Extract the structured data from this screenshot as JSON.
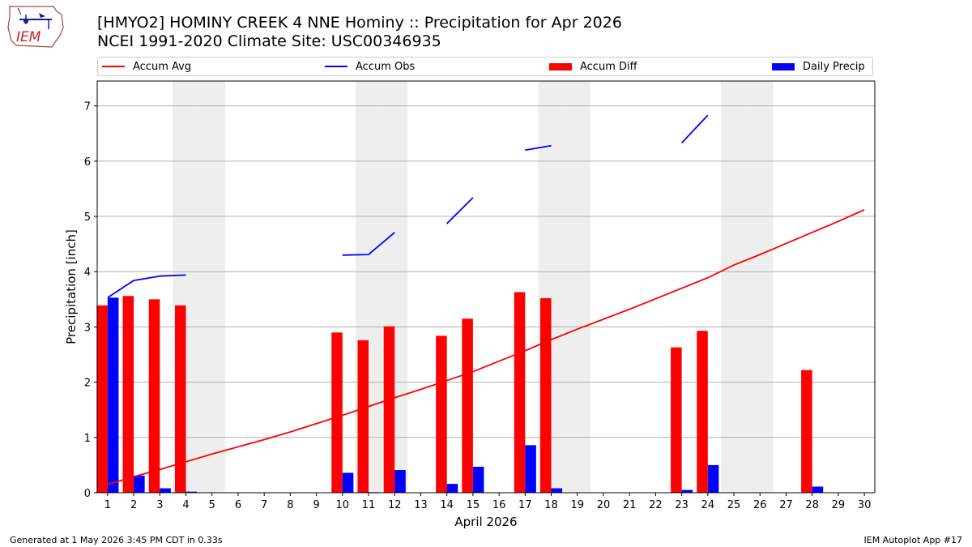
{
  "header": {
    "title_line1": "[HMYO2] HOMINY CREEK 4 NNE Hominy :: Precipitation for Apr 2026",
    "title_line2": "NCEI 1991-2020 Climate Site: USC00346935",
    "logo_text": "IEM"
  },
  "legend": {
    "items": [
      {
        "label": "Accum Avg",
        "color": "#ff0000",
        "kind": "line"
      },
      {
        "label": "Accum Obs",
        "color": "#0000ff",
        "kind": "line"
      },
      {
        "label": "Accum Diff",
        "color": "#ff0000",
        "kind": "bar"
      },
      {
        "label": "Daily Precip",
        "color": "#0000ff",
        "kind": "bar"
      }
    ]
  },
  "chart_data": {
    "type": "bar",
    "title": "[HMYO2] HOMINY CREEK 4 NNE Hominy :: Precipitation for Apr 2026",
    "xlabel": "April 2026",
    "ylabel": "Precipitation [inch]",
    "xlim": [
      0.6,
      30.4
    ],
    "ylim": [
      0,
      7.45
    ],
    "yticks": [
      0,
      1,
      2,
      3,
      4,
      5,
      6,
      7
    ],
    "grid": "horizontal",
    "legend_position": "top",
    "days": [
      1,
      2,
      3,
      4,
      5,
      6,
      7,
      8,
      9,
      10,
      11,
      12,
      13,
      14,
      15,
      16,
      17,
      18,
      19,
      20,
      21,
      22,
      23,
      24,
      25,
      26,
      27,
      28,
      29,
      30
    ],
    "weekend_shading_days": [
      4,
      5,
      11,
      12,
      18,
      19,
      25,
      26
    ],
    "series": [
      {
        "name": "Accum Avg",
        "kind": "line",
        "color": "#ff0000",
        "values": [
          0.15,
          0.29,
          0.42,
          0.56,
          0.7,
          0.83,
          0.96,
          1.1,
          1.25,
          1.4,
          1.56,
          1.72,
          1.87,
          2.03,
          2.19,
          2.38,
          2.57,
          2.77,
          2.96,
          3.14,
          3.32,
          3.51,
          3.7,
          3.89,
          4.12,
          4.31,
          4.51,
          4.71,
          4.91,
          5.12
        ]
      },
      {
        "name": "Accum Obs",
        "kind": "line",
        "color": "#0000ff",
        "values": [
          3.53,
          3.84,
          3.92,
          3.94,
          null,
          null,
          null,
          null,
          null,
          4.3,
          4.31,
          4.71,
          null,
          4.87,
          5.34,
          null,
          6.2,
          6.28,
          null,
          null,
          null,
          null,
          6.33,
          6.83,
          null,
          null,
          null,
          null,
          null,
          null
        ]
      },
      {
        "name": "Accum Diff",
        "kind": "bar",
        "color": "#ff0000",
        "values": [
          3.39,
          3.56,
          3.5,
          3.39,
          0,
          0,
          0,
          0,
          0,
          2.9,
          2.76,
          3.01,
          0,
          2.84,
          3.15,
          0,
          3.63,
          3.52,
          0,
          0,
          0,
          0,
          2.63,
          2.93,
          0,
          0,
          0,
          2.22,
          0,
          0
        ]
      },
      {
        "name": "Daily Precip",
        "kind": "bar",
        "color": "#0000ff",
        "values": [
          3.53,
          0.31,
          0.08,
          0.02,
          0,
          0,
          0,
          0,
          0,
          0.36,
          0.01,
          0.41,
          0,
          0.16,
          0.47,
          0,
          0.86,
          0.08,
          0,
          0,
          0,
          0,
          0.05,
          0.5,
          0,
          0,
          0,
          0.11,
          0,
          0
        ]
      }
    ]
  },
  "footer": {
    "left": "Generated at 1 May 2026 3:45 PM CDT in 0.33s",
    "right": "IEM Autoplot App #17"
  }
}
